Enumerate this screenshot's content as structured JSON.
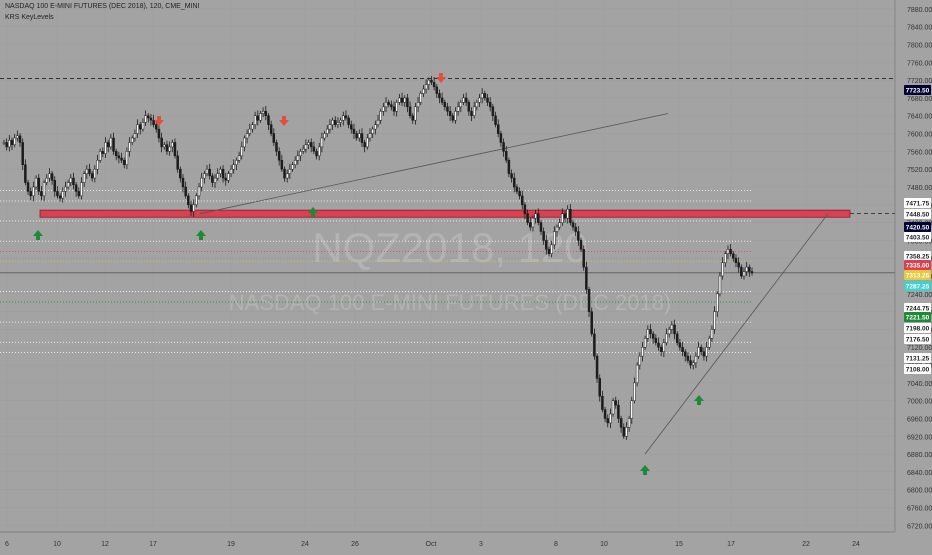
{
  "header": {
    "symbol_line": "NASDAQ 100 E-MINI FUTURES (DEC 2018), 120, CME_MINI",
    "indicator": "KRS KeyLevels"
  },
  "watermark": {
    "ticker": "NQZ2018, 120",
    "name": "NASDAQ 100 E-MINI FUTURES (DEC 2018)"
  },
  "colors": {
    "background": "#a3a3a3",
    "candle": "#1c1c1c",
    "resistance_zone": "#d94050",
    "up_arrow": "#1e8a38",
    "down_arrow": "#e05040",
    "price_line": "#5a5a5a"
  },
  "chart_data": {
    "type": "candlestick",
    "y_axis": {
      "ticks": [
        "7880.00",
        "7840.00",
        "7800.00",
        "7760.00",
        "7720.00",
        "7680.00",
        "7640.00",
        "7600.00",
        "7560.00",
        "7520.00",
        "7480.00",
        "7440.00",
        "7400.00",
        "7360.00",
        "7320.00",
        "7280.00",
        "7240.00",
        "7200.00",
        "7160.00",
        "7120.00",
        "7080.00",
        "7040.00",
        "7000.00",
        "6960.00",
        "6920.00",
        "6880.00",
        "6840.00",
        "6800.00",
        "6760.00",
        "6720.00"
      ],
      "ylim": [
        6705,
        7900
      ]
    },
    "x_axis": {
      "ticks": [
        "6",
        "10",
        "12",
        "17",
        "19",
        "24",
        "26",
        "Oct",
        "3",
        "8",
        "10",
        "15",
        "17",
        "22",
        "24"
      ]
    },
    "price_labels": [
      {
        "text": "7723.50",
        "value": 7723.5,
        "bg": "#000033",
        "fg": "#ffffff"
      },
      {
        "text": "7471.75",
        "value": 7471.75,
        "bg": "#ffffff",
        "fg": "#222222"
      },
      {
        "text": "7448.50",
        "value": 7448.5,
        "bg": "#ffffff",
        "fg": "#222222"
      },
      {
        "text": "7420.50",
        "value": 7420.5,
        "bg": "#000033",
        "fg": "#ffffff"
      },
      {
        "text": "7403.50",
        "value": 7403.5,
        "bg": "#ffffff",
        "fg": "#222222"
      },
      {
        "text": "7358.25",
        "value": 7358.25,
        "bg": "#ffffff",
        "fg": "#222222"
      },
      {
        "text": "7335.00",
        "value": 7335.0,
        "bg": "#d94050",
        "fg": "#ffffff"
      },
      {
        "text": "7313.25",
        "value": 7313.25,
        "bg": "#e8c840",
        "fg": "#ffffff"
      },
      {
        "text": "7287.25",
        "value": 7287.25,
        "bg": "#40d0d0",
        "fg": "#ffffff"
      },
      {
        "text": "7244.75",
        "value": 7244.75,
        "bg": "#ffffff",
        "fg": "#222222"
      },
      {
        "text": "7221.50",
        "value": 7221.5,
        "bg": "#1e8a38",
        "fg": "#ffffff"
      },
      {
        "text": "7198.00",
        "value": 7198.0,
        "bg": "#ffffff",
        "fg": "#222222"
      },
      {
        "text": "7176.50",
        "value": 7176.5,
        "bg": "#ffffff",
        "fg": "#222222"
      },
      {
        "text": "7131.25",
        "value": 7131.25,
        "bg": "#ffffff",
        "fg": "#222222"
      },
      {
        "text": "7108.00",
        "value": 7108.0,
        "bg": "#ffffff",
        "fg": "#222222"
      }
    ],
    "key_levels": [
      {
        "value": 7723.5,
        "color": "#222222",
        "style": "dashed"
      },
      {
        "value": 7471.75,
        "color": "#ffffff",
        "style": "dotted"
      },
      {
        "value": 7448.5,
        "color": "#ffffff",
        "style": "dotted"
      },
      {
        "value": 7403.5,
        "color": "#ffffff",
        "style": "dotted"
      },
      {
        "value": 7358.25,
        "color": "#ffffff",
        "style": "dotted"
      },
      {
        "value": 7335.0,
        "color": "#d94050",
        "style": "dotted"
      },
      {
        "value": 7313.25,
        "color": "#e8c840",
        "style": "dotted"
      },
      {
        "value": 7244.75,
        "color": "#ffffff",
        "style": "dotted"
      },
      {
        "value": 7221.5,
        "color": "#1e8a38",
        "style": "dotted"
      },
      {
        "value": 7176.5,
        "color": "#ffffff",
        "style": "dotted"
      },
      {
        "value": 7131.25,
        "color": "#ffffff",
        "style": "dotted"
      },
      {
        "value": 7108.0,
        "color": "#ffffff",
        "style": "dotted"
      }
    ],
    "last_price": 7287.25,
    "resistance_zone": [
      7412,
      7428
    ],
    "candles": [
      7580,
      7570,
      7585,
      7575,
      7590,
      7595,
      7580,
      7530,
      7490,
      7470,
      7460,
      7480,
      7500,
      7470,
      7460,
      7490,
      7500,
      7510,
      7495,
      7470,
      7460,
      7455,
      7470,
      7480,
      7490,
      7500,
      7485,
      7470,
      7460,
      7490,
      7510,
      7520,
      7510,
      7500,
      7520,
      7540,
      7560,
      7555,
      7580,
      7570,
      7590,
      7560,
      7550,
      7545,
      7540,
      7530,
      7560,
      7580,
      7590,
      7600,
      7620,
      7610,
      7625,
      7640,
      7635,
      7630,
      7620,
      7610,
      7590,
      7570,
      7575,
      7560,
      7570,
      7580,
      7550,
      7520,
      7500,
      7480,
      7460,
      7440,
      7425,
      7440,
      7460,
      7480,
      7500,
      7510,
      7520,
      7505,
      7490,
      7500,
      7510,
      7520,
      7500,
      7495,
      7510,
      7520,
      7530,
      7540,
      7550,
      7570,
      7590,
      7600,
      7610,
      7620,
      7640,
      7630,
      7645,
      7650,
      7640,
      7620,
      7600,
      7580,
      7560,
      7540,
      7520,
      7500,
      7510,
      7520,
      7530,
      7540,
      7550,
      7560,
      7565,
      7575,
      7580,
      7570,
      7560,
      7550,
      7570,
      7590,
      7600,
      7610,
      7620,
      7630,
      7620,
      7625,
      7630,
      7640,
      7635,
      7620,
      7610,
      7600,
      7590,
      7600,
      7580,
      7570,
      7590,
      7600,
      7610,
      7620,
      7630,
      7650,
      7660,
      7670,
      7665,
      7660,
      7650,
      7670,
      7680,
      7670,
      7680,
      7660,
      7640,
      7630,
      7660,
      7670,
      7690,
      7700,
      7710,
      7720,
      7715,
      7705,
      7690,
      7680,
      7670,
      7660,
      7650,
      7640,
      7630,
      7650,
      7660,
      7670,
      7680,
      7670,
      7650,
      7640,
      7660,
      7670,
      7680,
      7690,
      7680,
      7670,
      7660,
      7640,
      7620,
      7600,
      7580,
      7560,
      7540,
      7510,
      7500,
      7480,
      7470,
      7460,
      7440,
      7420,
      7400,
      7390,
      7410,
      7420,
      7400,
      7380,
      7360,
      7340,
      7330,
      7350,
      7380,
      7390,
      7400,
      7420,
      7410,
      7430,
      7400,
      7390,
      7380,
      7360,
      7340,
      7300,
      7250,
      7200,
      7150,
      7100,
      7050,
      7010,
      6980,
      6960,
      6950,
      6970,
      7000,
      6990,
      6960,
      6940,
      6920,
      6940,
      6960,
      7000,
      7040,
      7080,
      7100,
      7120,
      7140,
      7160,
      7150,
      7140,
      7130,
      7120,
      7110,
      7130,
      7150,
      7160,
      7170,
      7150,
      7130,
      7120,
      7110,
      7100,
      7090,
      7080,
      7085,
      7100,
      7120,
      7110,
      7100,
      7120,
      7140,
      7160,
      7200,
      7240,
      7280,
      7310,
      7330,
      7340,
      7330,
      7320,
      7310,
      7300,
      7280,
      7290,
      7300,
      7290,
      7287
    ]
  }
}
